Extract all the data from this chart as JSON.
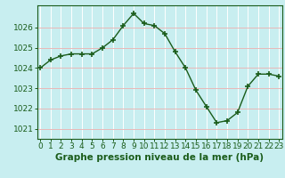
{
  "x": [
    0,
    1,
    2,
    3,
    4,
    5,
    6,
    7,
    8,
    9,
    10,
    11,
    12,
    13,
    14,
    15,
    16,
    17,
    18,
    19,
    20,
    21,
    22,
    23
  ],
  "y": [
    1024.0,
    1024.4,
    1024.6,
    1024.7,
    1024.7,
    1024.7,
    1025.0,
    1025.4,
    1026.1,
    1026.7,
    1026.2,
    1026.1,
    1025.7,
    1024.8,
    1024.0,
    1022.9,
    1022.1,
    1021.3,
    1021.4,
    1021.8,
    1023.1,
    1023.7,
    1023.7,
    1023.6
  ],
  "line_color": "#1a5c1a",
  "marker": "+",
  "marker_size": 5,
  "bg_color": "#c8eef0",
  "grid_color_h": "#e8b8b8",
  "grid_color_v": "#ffffff",
  "ylabel_ticks": [
    1021,
    1022,
    1023,
    1024,
    1025,
    1026
  ],
  "xlabel_ticks": [
    0,
    1,
    2,
    3,
    4,
    5,
    6,
    7,
    8,
    9,
    10,
    11,
    12,
    13,
    14,
    15,
    16,
    17,
    18,
    19,
    20,
    21,
    22,
    23
  ],
  "xlabel": "Graphe pression niveau de la mer (hPa)",
  "ylim": [
    1020.5,
    1027.1
  ],
  "xlim": [
    -0.3,
    23.3
  ],
  "xlabel_fontsize": 7.5,
  "tick_fontsize": 6.5,
  "line_width": 1.0
}
